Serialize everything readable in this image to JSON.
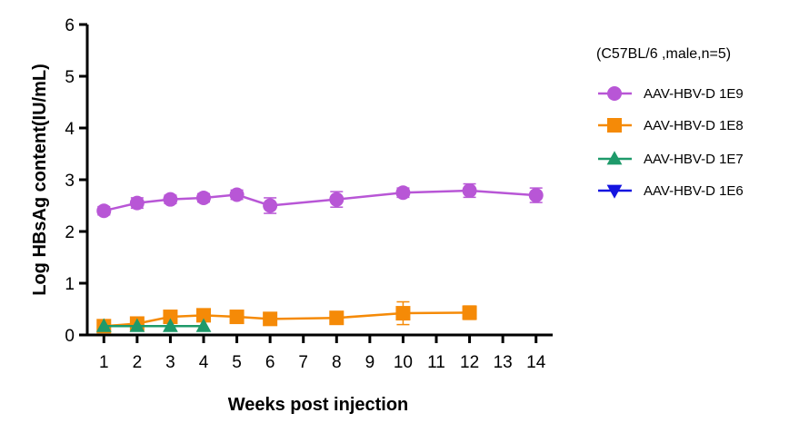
{
  "chart_data": {
    "type": "line",
    "xlabel": "Weeks post injection",
    "ylabel": "Log HBsAg content(IU/mL)",
    "ylim": [
      0,
      6
    ],
    "yticks": [
      0,
      1,
      2,
      3,
      4,
      5,
      6
    ],
    "xticks": [
      1,
      2,
      3,
      4,
      5,
      6,
      7,
      8,
      9,
      10,
      11,
      12,
      13,
      14
    ],
    "legend_title": "(C57BL/6 ,male,n=5)",
    "legend_position": "right",
    "series": [
      {
        "name": "AAV-HBV-D 1E9",
        "color": "#B856D6",
        "marker": "circle",
        "x": [
          1,
          2,
          3,
          4,
          5,
          6,
          8,
          10,
          12,
          14
        ],
        "y": [
          2.4,
          2.55,
          2.62,
          2.65,
          2.71,
          2.5,
          2.62,
          2.75,
          2.79,
          2.7
        ],
        "err": [
          0.08,
          0.1,
          0.08,
          0.08,
          0.09,
          0.15,
          0.15,
          0.09,
          0.13,
          0.14
        ]
      },
      {
        "name": "AAV-HBV-D 1E8",
        "color": "#F58A07",
        "marker": "square",
        "x": [
          1,
          2,
          3,
          4,
          5,
          6,
          8,
          10,
          12
        ],
        "y": [
          0.17,
          0.22,
          0.35,
          0.38,
          0.35,
          0.31,
          0.33,
          0.42,
          0.43
        ],
        "err": [
          0.04,
          0.05,
          0.12,
          0.07,
          0.05,
          0.04,
          0.11,
          0.22,
          0.13
        ]
      },
      {
        "name": "AAV-HBV-D 1E7",
        "color": "#1E9A6A",
        "marker": "triangle-up",
        "x": [
          1,
          2,
          3,
          4
        ],
        "y": [
          0.17,
          0.17,
          0.17,
          0.17
        ],
        "err": [
          0,
          0,
          0,
          0
        ]
      },
      {
        "name": "AAV-HBV-D 1E6",
        "color": "#1414E0",
        "marker": "triangle-down",
        "x": [],
        "y": [],
        "err": []
      }
    ]
  }
}
